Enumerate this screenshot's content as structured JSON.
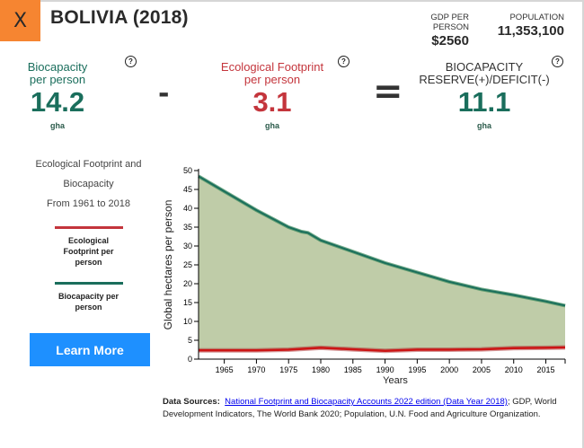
{
  "header": {
    "close_label": "X",
    "country_title": "BOLIVIA (2018)",
    "gdp_label": "GDP PER PERSON",
    "gdp_value": "$2560",
    "population_label": "POPULATION",
    "population_value": "11,353,100"
  },
  "metrics": {
    "biocapacity": {
      "label_line1": "Biocapacity",
      "label_line2": "per person",
      "value": "14.2",
      "unit": "gha",
      "color": "#1a6e5c"
    },
    "operator_minus": "-",
    "footprint": {
      "label_line1": "Ecological Footprint",
      "label_line2": "per person",
      "value": "3.1",
      "unit": "gha",
      "color": "#c4353c"
    },
    "operator_equals": "=",
    "reserve": {
      "label_line1": "BIOCAPACITY",
      "label_line2": "RESERVE(+)/DEFICIT(-)",
      "value": "11.1",
      "unit": "gha",
      "color": "#1a6e5c"
    },
    "help_glyph": "?"
  },
  "sidebar": {
    "title_line1": "Ecological Footprint and",
    "title_line2": "Biocapacity",
    "title_line3": "From 1961 to 2018",
    "legend": [
      {
        "label_line1": "Ecological",
        "label_line2": "Footprint per",
        "label_line3": "person",
        "color": "#c4353c"
      },
      {
        "label_line1": "Biocapacity per",
        "label_line2": "person",
        "color": "#1a6e5c"
      }
    ],
    "learn_more_label": "Learn More"
  },
  "sources": {
    "prefix": "Data Sources:",
    "link_text": "National Footprint and Biocapacity Accounts 2022 edition (Data Year 2018)",
    "rest": "; GDP, World Development Indicators, The World Bank 2020; Population, U.N. Food and Agriculture Organization."
  },
  "chart_data": {
    "type": "area",
    "title": "",
    "xlabel": "Years",
    "ylabel": "Global hectares per person",
    "xlim": [
      1961,
      2018
    ],
    "ylim": [
      0,
      50
    ],
    "x_ticks": [
      1965,
      1970,
      1975,
      1980,
      1985,
      1990,
      1995,
      2000,
      2005,
      2010,
      2015
    ],
    "y_ticks": [
      0,
      5,
      10,
      15,
      20,
      25,
      30,
      35,
      40,
      45,
      50
    ],
    "grid": false,
    "fill_color": "#bfcca8",
    "series": [
      {
        "name": "Biocapacity per person",
        "color": "#1a6e5c",
        "x": [
          1961,
          1965,
          1970,
          1975,
          1977,
          1978,
          1980,
          1985,
          1990,
          1995,
          2000,
          2005,
          2010,
          2015,
          2018
        ],
        "values": [
          48.5,
          44.5,
          39.5,
          35.0,
          33.8,
          33.5,
          31.5,
          28.5,
          25.5,
          23.0,
          20.5,
          18.5,
          17.0,
          15.3,
          14.2
        ]
      },
      {
        "name": "Ecological Footprint per person",
        "color": "#c4353c",
        "x": [
          1961,
          1965,
          1970,
          1975,
          1980,
          1985,
          1990,
          1995,
          2000,
          2005,
          2010,
          2015,
          2018
        ],
        "values": [
          2.3,
          2.3,
          2.3,
          2.5,
          3.0,
          2.6,
          2.2,
          2.5,
          2.5,
          2.6,
          2.9,
          3.0,
          3.1
        ]
      }
    ]
  }
}
